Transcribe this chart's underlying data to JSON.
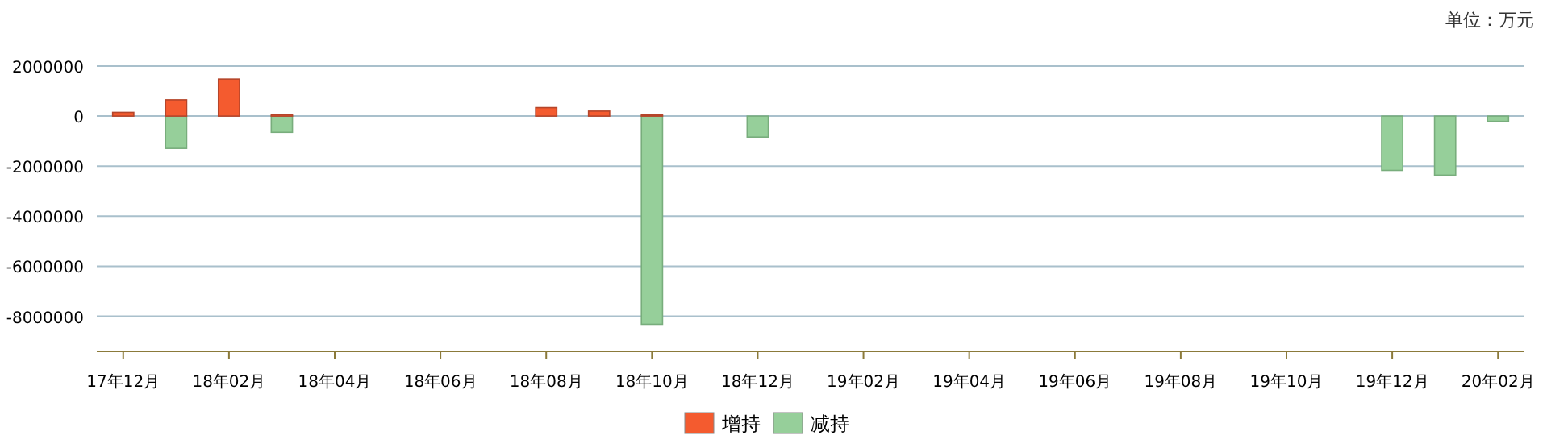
{
  "chart_data": {
    "type": "bar",
    "categories": [
      "17年12月",
      null,
      "18年02月",
      null,
      "18年04月",
      null,
      "18年06月",
      null,
      "18年08月",
      null,
      "18年10月",
      null,
      "18年12月",
      null,
      "19年02月",
      null,
      "19年04月",
      null,
      "19年06月",
      null,
      "19年08月",
      null,
      "19年10月",
      null,
      "19年12月",
      null,
      "20年02月"
    ],
    "series": [
      {
        "name": "增持",
        "color": "#f45b2f",
        "values": [
          150000,
          650000,
          1480000,
          60000,
          null,
          null,
          null,
          null,
          340000,
          200000,
          50000,
          null,
          null,
          null,
          null,
          null,
          null,
          null,
          null,
          null,
          null,
          null,
          null,
          null,
          null,
          null,
          null
        ]
      },
      {
        "name": "减持",
        "color": "#96cf9a",
        "values": [
          null,
          -1290000,
          null,
          -650000,
          null,
          null,
          null,
          null,
          null,
          null,
          -8320000,
          null,
          -840000,
          null,
          null,
          null,
          null,
          null,
          null,
          null,
          null,
          null,
          null,
          null,
          -2170000,
          -2360000,
          -210000
        ]
      }
    ],
    "ylim": [
      -9400000,
      2000000
    ],
    "yticks": [
      -8000000,
      -6000000,
      -4000000,
      -2000000,
      0,
      2000000
    ],
    "grid": "y",
    "legend": "bottom",
    "annotations": [
      "单位：万元"
    ]
  }
}
